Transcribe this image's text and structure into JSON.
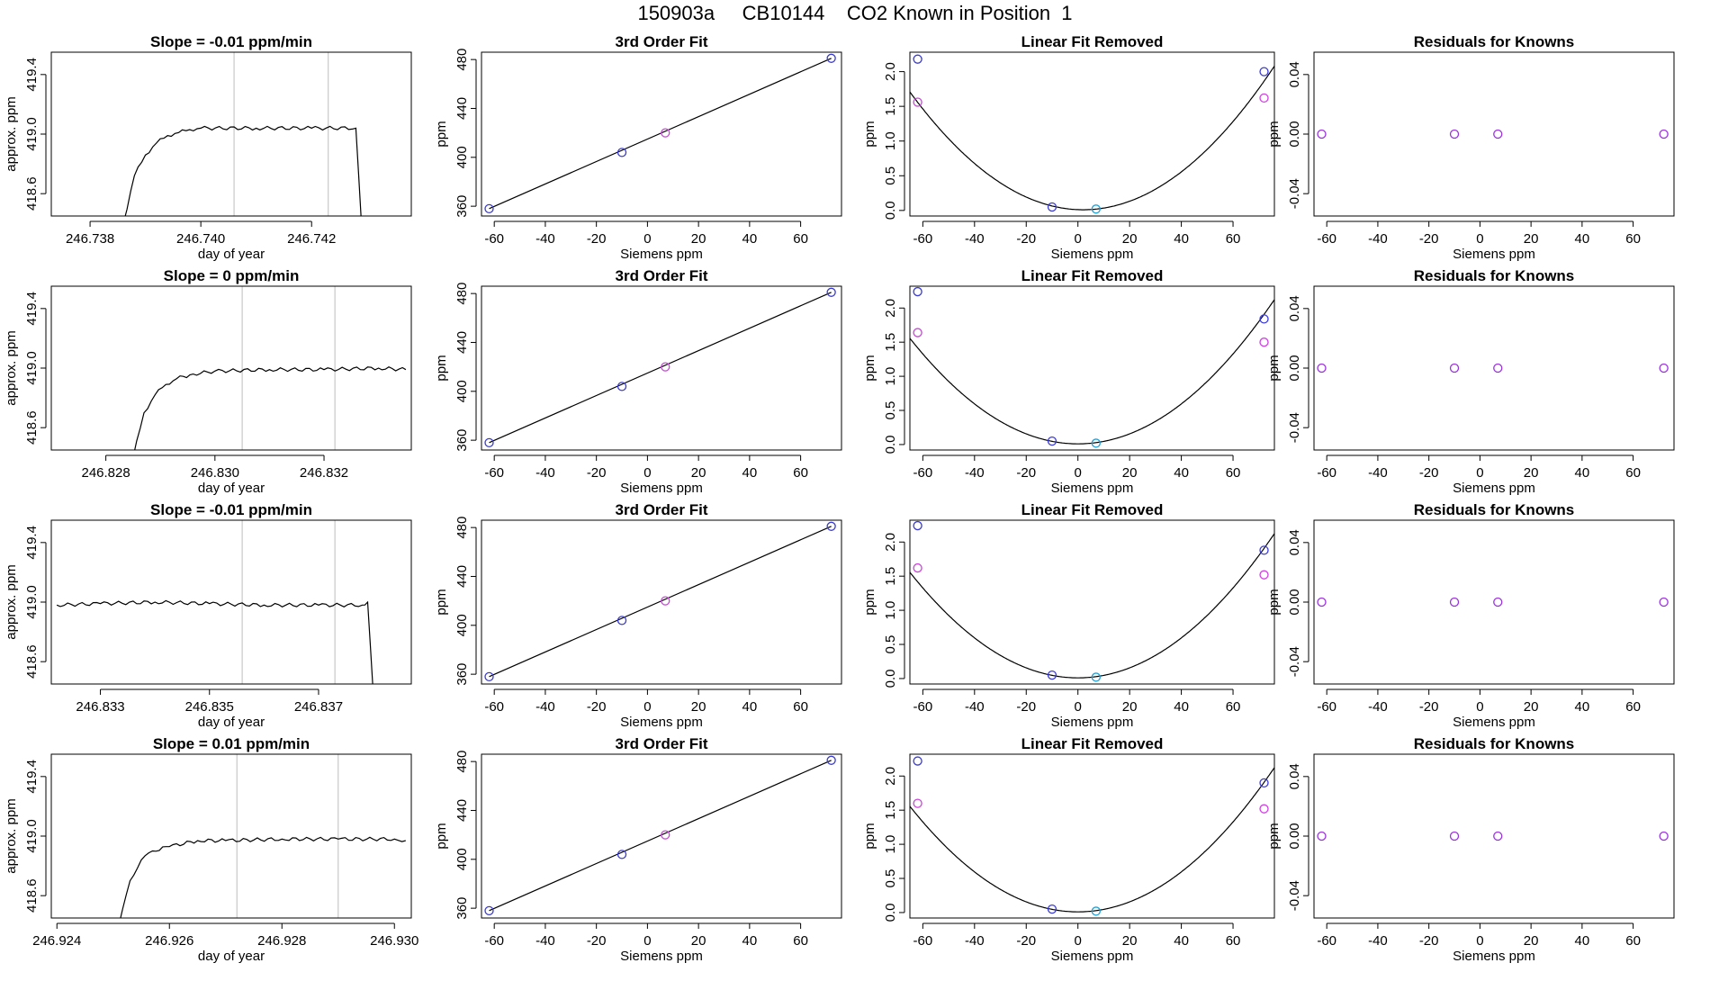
{
  "figure": {
    "title": "150903a     CB10144    CO2 Known in Position  1"
  },
  "colors": {
    "axis": "#000000",
    "line": "#000000",
    "vline": "#c8c8c8",
    "known_blue": "#3a3ad6",
    "known_magenta": "#cc44dd",
    "known_cyan": "#1f9fd6",
    "residual_purple": "#9933dd"
  },
  "chart_data": [
    {
      "type": "line",
      "row": 0,
      "panel": "time",
      "title": "Slope =  -0.01  ppm/min",
      "xlabel": "day of year",
      "ylabel": "approx. ppm",
      "xlim": [
        246.7373,
        246.7438
      ],
      "ylim": [
        418.45,
        419.55
      ],
      "xticks": [
        246.738,
        246.74,
        246.742
      ],
      "xtick_labels": [
        "246.738",
        "246.740",
        "246.742"
      ],
      "yticks": [
        418.6,
        419.0,
        419.4
      ],
      "ytick_labels": [
        "418.6",
        "419.0",
        "419.4"
      ],
      "vlines": [
        246.7406,
        246.7423
      ],
      "series_points": [
        [
          246.7386,
          418.4
        ],
        [
          246.7388,
          418.72
        ],
        [
          246.739,
          418.86
        ],
        [
          246.7392,
          418.94
        ],
        [
          246.7394,
          418.99
        ],
        [
          246.7396,
          419.01
        ],
        [
          246.7398,
          419.03
        ],
        [
          246.74,
          419.04
        ],
        [
          246.741,
          419.04
        ],
        [
          246.742,
          419.04
        ],
        [
          246.7428,
          419.04
        ],
        [
          246.7428,
          419.03
        ],
        [
          246.7429,
          418.4
        ]
      ]
    },
    {
      "type": "scatter",
      "row": 0,
      "panel": "fit",
      "title": "3rd Order Fit",
      "xlabel": "Siemens ppm",
      "ylabel": "ppm",
      "xlim": [
        -65,
        76
      ],
      "ylim": [
        352,
        486
      ],
      "xticks": [
        -60,
        -40,
        -20,
        0,
        20,
        40,
        60
      ],
      "xtick_labels": [
        "-60",
        "-40",
        "-20",
        "0",
        "20",
        "40",
        "60"
      ],
      "yticks": [
        360,
        400,
        440,
        480
      ],
      "ytick_labels": [
        "360",
        "400",
        "440",
        "480"
      ],
      "points": [
        {
          "x": -62,
          "y": 358,
          "c": "blue"
        },
        {
          "x": -10,
          "y": 404,
          "c": "blue"
        },
        {
          "x": 7,
          "y": 420,
          "c": "magenta"
        },
        {
          "x": 72,
          "y": 481,
          "c": "blue"
        }
      ],
      "line": [
        [
          -62,
          358
        ],
        [
          72,
          481
        ]
      ]
    },
    {
      "type": "scatter",
      "row": 0,
      "panel": "linear",
      "title": "Linear Fit Removed",
      "xlabel": "Siemens ppm",
      "ylabel": "ppm",
      "xlim": [
        -65,
        76
      ],
      "ylim": [
        -0.08,
        2.28
      ],
      "xticks": [
        -60,
        -40,
        -20,
        0,
        20,
        40,
        60
      ],
      "xtick_labels": [
        "-60",
        "-40",
        "-20",
        "0",
        "20",
        "40",
        "60"
      ],
      "yticks": [
        0.0,
        0.5,
        1.0,
        1.5,
        2.0
      ],
      "ytick_labels": [
        "0.0",
        "0.5",
        "1.0",
        "1.5",
        "2.0"
      ],
      "points": [
        {
          "x": -62,
          "y": 2.18,
          "c": "blue"
        },
        {
          "x": -62,
          "y": 1.56,
          "c": "magenta"
        },
        {
          "x": -10,
          "y": 0.05,
          "c": "blue"
        },
        {
          "x": 7,
          "y": 0.02,
          "c": "cyan"
        },
        {
          "x": 72,
          "y": 2.0,
          "c": "blue"
        },
        {
          "x": 72,
          "y": 1.62,
          "c": "magenta"
        }
      ],
      "curve": {
        "x0": 2,
        "ymin": 0.01,
        "a": 0.000378
      }
    },
    {
      "type": "scatter",
      "row": 0,
      "panel": "residual",
      "title": "Residuals for Knowns",
      "xlabel": "Siemens ppm",
      "ylabel": "ppm",
      "xlim": [
        -65,
        76
      ],
      "ylim": [
        -0.055,
        0.055
      ],
      "xticks": [
        -60,
        -40,
        -20,
        0,
        20,
        40,
        60
      ],
      "xtick_labels": [
        "-60",
        "-40",
        "-20",
        "0",
        "20",
        "40",
        "60"
      ],
      "yticks": [
        -0.04,
        0.0,
        0.04
      ],
      "ytick_labels": [
        "-0.04",
        "0.00",
        "0.04"
      ],
      "points": [
        {
          "x": -62,
          "y": 0,
          "c": "purple"
        },
        {
          "x": -10,
          "y": 0,
          "c": "purple"
        },
        {
          "x": 7,
          "y": 0,
          "c": "purple"
        },
        {
          "x": 72,
          "y": 0,
          "c": "purple"
        }
      ]
    },
    {
      "type": "line",
      "row": 1,
      "panel": "time",
      "title": "Slope =  0  ppm/min",
      "xlabel": "day of year",
      "ylabel": "approx. ppm",
      "xlim": [
        246.827,
        246.8336
      ],
      "ylim": [
        418.45,
        419.55
      ],
      "xticks": [
        246.828,
        246.83,
        246.832
      ],
      "xtick_labels": [
        "246.828",
        "246.830",
        "246.832"
      ],
      "yticks": [
        418.6,
        419.0,
        419.4
      ],
      "ytick_labels": [
        "418.6",
        "419.0",
        "419.4"
      ],
      "vlines": [
        246.8305,
        246.8322
      ],
      "series_points": [
        [
          246.8285,
          418.4
        ],
        [
          246.8287,
          418.7
        ],
        [
          246.8289,
          418.82
        ],
        [
          246.8291,
          418.89
        ],
        [
          246.8293,
          418.93
        ],
        [
          246.8296,
          418.96
        ],
        [
          246.83,
          418.98
        ],
        [
          246.831,
          418.99
        ],
        [
          246.832,
          418.99
        ],
        [
          246.833,
          419.0
        ],
        [
          246.8335,
          418.99
        ]
      ]
    },
    {
      "type": "scatter",
      "row": 1,
      "panel": "fit",
      "title": "3rd Order Fit",
      "xlabel": "Siemens ppm",
      "ylabel": "ppm",
      "xlim": [
        -65,
        76
      ],
      "ylim": [
        352,
        486
      ],
      "xticks": [
        -60,
        -40,
        -20,
        0,
        20,
        40,
        60
      ],
      "xtick_labels": [
        "-60",
        "-40",
        "-20",
        "0",
        "20",
        "40",
        "60"
      ],
      "yticks": [
        360,
        400,
        440,
        480
      ],
      "ytick_labels": [
        "360",
        "400",
        "440",
        "480"
      ],
      "points": [
        {
          "x": -62,
          "y": 358,
          "c": "blue"
        },
        {
          "x": -10,
          "y": 404,
          "c": "blue"
        },
        {
          "x": 7,
          "y": 420,
          "c": "magenta"
        },
        {
          "x": 72,
          "y": 481,
          "c": "blue"
        }
      ],
      "line": [
        [
          -62,
          358
        ],
        [
          72,
          481
        ]
      ]
    },
    {
      "type": "scatter",
      "row": 1,
      "panel": "linear",
      "title": "Linear Fit Removed",
      "xlabel": "Siemens ppm",
      "ylabel": "ppm",
      "xlim": [
        -65,
        76
      ],
      "ylim": [
        -0.08,
        2.32
      ],
      "xticks": [
        -60,
        -40,
        -20,
        0,
        20,
        40,
        60
      ],
      "xtick_labels": [
        "-60",
        "-40",
        "-20",
        "0",
        "20",
        "40",
        "60"
      ],
      "yticks": [
        0.0,
        0.5,
        1.0,
        1.5,
        2.0
      ],
      "ytick_labels": [
        "0.0",
        "0.5",
        "1.0",
        "1.5",
        "2.0"
      ],
      "points": [
        {
          "x": -62,
          "y": 2.24,
          "c": "blue"
        },
        {
          "x": -62,
          "y": 1.64,
          "c": "magenta"
        },
        {
          "x": -10,
          "y": 0.05,
          "c": "blue"
        },
        {
          "x": 7,
          "y": 0.02,
          "c": "cyan"
        },
        {
          "x": 72,
          "y": 1.84,
          "c": "blue"
        },
        {
          "x": 72,
          "y": 1.5,
          "c": "magenta"
        }
      ],
      "curve": {
        "x0": 0,
        "ymin": 0.01,
        "a": 0.000366
      }
    },
    {
      "type": "scatter",
      "row": 1,
      "panel": "residual",
      "title": "Residuals for Knowns",
      "xlabel": "Siemens ppm",
      "ylabel": "ppm",
      "xlim": [
        -65,
        76
      ],
      "ylim": [
        -0.055,
        0.055
      ],
      "xticks": [
        -60,
        -40,
        -20,
        0,
        20,
        40,
        60
      ],
      "xtick_labels": [
        "-60",
        "-40",
        "-20",
        "0",
        "20",
        "40",
        "60"
      ],
      "yticks": [
        -0.04,
        0.0,
        0.04
      ],
      "ytick_labels": [
        "-0.04",
        "0.00",
        "0.04"
      ],
      "points": [
        {
          "x": -62,
          "y": 0,
          "c": "purple"
        },
        {
          "x": -10,
          "y": 0,
          "c": "purple"
        },
        {
          "x": 7,
          "y": 0,
          "c": "purple"
        },
        {
          "x": 72,
          "y": 0,
          "c": "purple"
        }
      ]
    },
    {
      "type": "line",
      "row": 2,
      "panel": "time",
      "title": "Slope =  -0.01  ppm/min",
      "xlabel": "day of year",
      "ylabel": "approx. ppm",
      "xlim": [
        246.8321,
        246.8387
      ],
      "ylim": [
        418.45,
        419.55
      ],
      "xticks": [
        246.833,
        246.835,
        246.837
      ],
      "xtick_labels": [
        "246.833",
        "246.835",
        "246.837"
      ],
      "yticks": [
        418.6,
        419.0,
        419.4
      ],
      "ytick_labels": [
        "418.6",
        "419.0",
        "419.4"
      ],
      "vlines": [
        246.8356,
        246.8373
      ],
      "series_points": [
        [
          246.8322,
          418.98
        ],
        [
          246.833,
          418.99
        ],
        [
          246.834,
          419.0
        ],
        [
          246.835,
          418.99
        ],
        [
          246.836,
          418.98
        ],
        [
          246.837,
          418.98
        ],
        [
          246.8378,
          418.98
        ],
        [
          246.8379,
          419.0
        ],
        [
          246.838,
          418.4
        ]
      ]
    },
    {
      "type": "scatter",
      "row": 2,
      "panel": "fit",
      "title": "3rd Order Fit",
      "xlabel": "Siemens ppm",
      "ylabel": "ppm",
      "xlim": [
        -65,
        76
      ],
      "ylim": [
        352,
        486
      ],
      "xticks": [
        -60,
        -40,
        -20,
        0,
        20,
        40,
        60
      ],
      "xtick_labels": [
        "-60",
        "-40",
        "-20",
        "0",
        "20",
        "40",
        "60"
      ],
      "yticks": [
        360,
        400,
        440,
        480
      ],
      "ytick_labels": [
        "360",
        "400",
        "440",
        "480"
      ],
      "points": [
        {
          "x": -62,
          "y": 358,
          "c": "blue"
        },
        {
          "x": -10,
          "y": 404,
          "c": "blue"
        },
        {
          "x": 7,
          "y": 420,
          "c": "magenta"
        },
        {
          "x": 72,
          "y": 481,
          "c": "blue"
        }
      ],
      "line": [
        [
          -62,
          358
        ],
        [
          72,
          481
        ]
      ]
    },
    {
      "type": "scatter",
      "row": 2,
      "panel": "linear",
      "title": "Linear Fit Removed",
      "xlabel": "Siemens ppm",
      "ylabel": "ppm",
      "xlim": [
        -65,
        76
      ],
      "ylim": [
        -0.08,
        2.32
      ],
      "xticks": [
        -60,
        -40,
        -20,
        0,
        20,
        40,
        60
      ],
      "xtick_labels": [
        "-60",
        "-40",
        "-20",
        "0",
        "20",
        "40",
        "60"
      ],
      "yticks": [
        0.0,
        0.5,
        1.0,
        1.5,
        2.0
      ],
      "ytick_labels": [
        "0.0",
        "0.5",
        "1.0",
        "1.5",
        "2.0"
      ],
      "points": [
        {
          "x": -62,
          "y": 2.24,
          "c": "blue"
        },
        {
          "x": -62,
          "y": 1.62,
          "c": "magenta"
        },
        {
          "x": -10,
          "y": 0.05,
          "c": "blue"
        },
        {
          "x": 7,
          "y": 0.02,
          "c": "cyan"
        },
        {
          "x": 72,
          "y": 1.88,
          "c": "blue"
        },
        {
          "x": 72,
          "y": 1.52,
          "c": "magenta"
        }
      ],
      "curve": {
        "x0": 0,
        "ymin": 0.01,
        "a": 0.000366
      }
    },
    {
      "type": "scatter",
      "row": 2,
      "panel": "residual",
      "title": "Residuals for Knowns",
      "xlabel": "Siemens ppm",
      "ylabel": "ppm",
      "xlim": [
        -65,
        76
      ],
      "ylim": [
        -0.055,
        0.055
      ],
      "xticks": [
        -60,
        -40,
        -20,
        0,
        20,
        40,
        60
      ],
      "xtick_labels": [
        "-60",
        "-40",
        "-20",
        "0",
        "20",
        "40",
        "60"
      ],
      "yticks": [
        -0.04,
        0.0,
        0.04
      ],
      "ytick_labels": [
        "-0.04",
        "0.00",
        "0.04"
      ],
      "points": [
        {
          "x": -62,
          "y": 0,
          "c": "purple"
        },
        {
          "x": -10,
          "y": 0,
          "c": "purple"
        },
        {
          "x": 7,
          "y": 0,
          "c": "purple"
        },
        {
          "x": 72,
          "y": 0,
          "c": "purple"
        }
      ]
    },
    {
      "type": "line",
      "row": 3,
      "panel": "time",
      "title": "Slope =  0.01  ppm/min",
      "xlabel": "day of year",
      "ylabel": "approx. ppm",
      "xlim": [
        246.9239,
        246.9303
      ],
      "ylim": [
        418.45,
        419.55
      ],
      "xticks": [
        246.924,
        246.926,
        246.928,
        246.93
      ],
      "xtick_labels": [
        "246.924",
        "246.926",
        "246.928",
        "246.930"
      ],
      "yticks": [
        418.6,
        419.0,
        419.4
      ],
      "ytick_labels": [
        "418.6",
        "419.0",
        "419.4"
      ],
      "vlines": [
        246.9272,
        246.929
      ],
      "series_points": [
        [
          246.9251,
          418.4
        ],
        [
          246.9253,
          418.7
        ],
        [
          246.9255,
          418.84
        ],
        [
          246.9257,
          418.9
        ],
        [
          246.926,
          418.93
        ],
        [
          246.9265,
          418.97
        ],
        [
          246.927,
          418.97
        ],
        [
          246.928,
          418.98
        ],
        [
          246.929,
          418.98
        ],
        [
          246.93,
          418.98
        ],
        [
          246.9302,
          418.97
        ]
      ]
    },
    {
      "type": "scatter",
      "row": 3,
      "panel": "fit",
      "title": "3rd Order Fit",
      "xlabel": "Siemens ppm",
      "ylabel": "ppm",
      "xlim": [
        -65,
        76
      ],
      "ylim": [
        352,
        486
      ],
      "xticks": [
        -60,
        -40,
        -20,
        0,
        20,
        40,
        60
      ],
      "xtick_labels": [
        "-60",
        "-40",
        "-20",
        "0",
        "20",
        "40",
        "60"
      ],
      "yticks": [
        360,
        400,
        440,
        480
      ],
      "ytick_labels": [
        "360",
        "400",
        "440",
        "480"
      ],
      "points": [
        {
          "x": -62,
          "y": 358,
          "c": "blue"
        },
        {
          "x": -10,
          "y": 404,
          "c": "blue"
        },
        {
          "x": 7,
          "y": 420,
          "c": "magenta"
        },
        {
          "x": 72,
          "y": 481,
          "c": "blue"
        }
      ],
      "line": [
        [
          -62,
          358
        ],
        [
          72,
          481
        ]
      ]
    },
    {
      "type": "scatter",
      "row": 3,
      "panel": "linear",
      "title": "Linear Fit Removed",
      "xlabel": "Siemens ppm",
      "ylabel": "ppm",
      "xlim": [
        -65,
        76
      ],
      "ylim": [
        -0.08,
        2.32
      ],
      "xticks": [
        -60,
        -40,
        -20,
        0,
        20,
        40,
        60
      ],
      "xtick_labels": [
        "-60",
        "-40",
        "-20",
        "0",
        "20",
        "40",
        "60"
      ],
      "yticks": [
        0.0,
        0.5,
        1.0,
        1.5,
        2.0
      ],
      "ytick_labels": [
        "0.0",
        "0.5",
        "1.0",
        "1.5",
        "2.0"
      ],
      "points": [
        {
          "x": -62,
          "y": 2.22,
          "c": "blue"
        },
        {
          "x": -62,
          "y": 1.6,
          "c": "magenta"
        },
        {
          "x": -10,
          "y": 0.05,
          "c": "blue"
        },
        {
          "x": 7,
          "y": 0.02,
          "c": "cyan"
        },
        {
          "x": 72,
          "y": 1.9,
          "c": "blue"
        },
        {
          "x": 72,
          "y": 1.52,
          "c": "magenta"
        }
      ],
      "curve": {
        "x0": 0,
        "ymin": 0.01,
        "a": 0.000366
      }
    },
    {
      "type": "scatter",
      "row": 3,
      "panel": "residual",
      "title": "Residuals for Knowns",
      "xlabel": "Siemens ppm",
      "ylabel": "ppm",
      "xlim": [
        -65,
        76
      ],
      "ylim": [
        -0.055,
        0.055
      ],
      "xticks": [
        -60,
        -40,
        -20,
        0,
        20,
        40,
        60
      ],
      "xtick_labels": [
        "-60",
        "-40",
        "-20",
        "0",
        "20",
        "40",
        "60"
      ],
      "yticks": [
        -0.04,
        0.0,
        0.04
      ],
      "ytick_labels": [
        "-0.04",
        "0.00",
        "0.04"
      ],
      "points": [
        {
          "x": -62,
          "y": 0,
          "c": "purple"
        },
        {
          "x": -10,
          "y": 0,
          "c": "purple"
        },
        {
          "x": 7,
          "y": 0,
          "c": "purple"
        },
        {
          "x": 72,
          "y": 0,
          "c": "purple"
        }
      ]
    }
  ]
}
